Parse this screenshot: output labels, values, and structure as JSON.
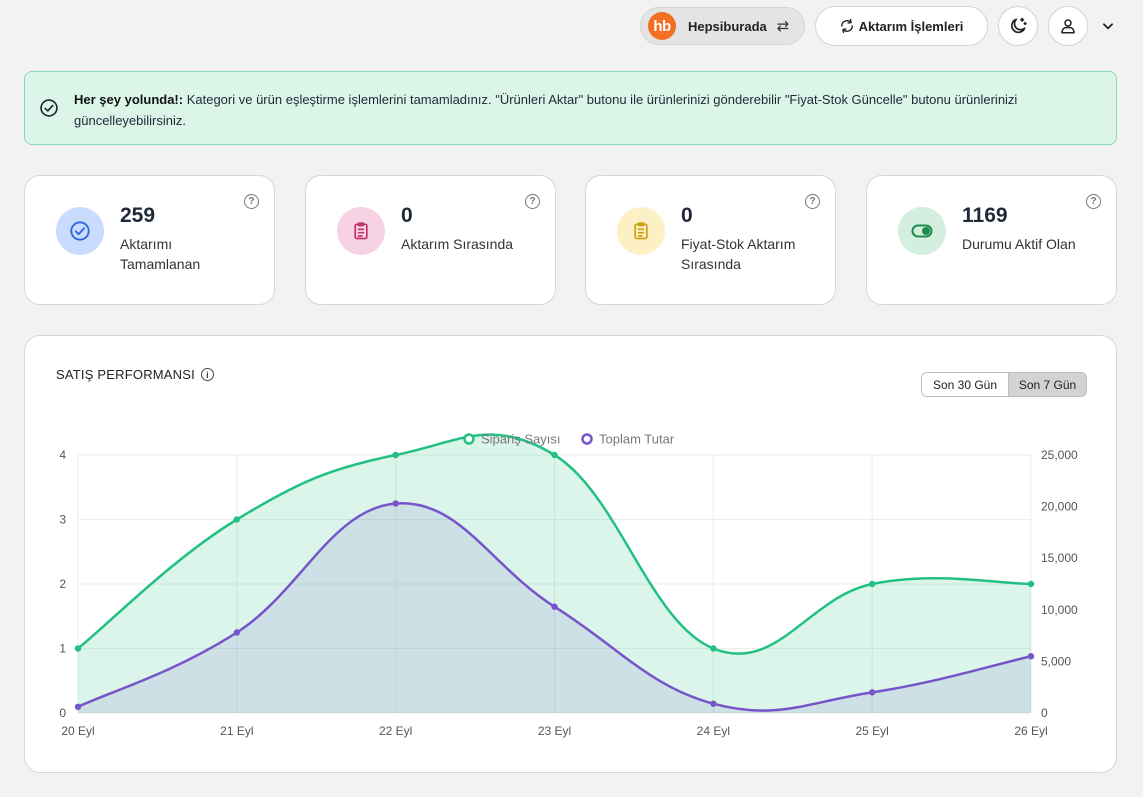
{
  "topbar": {
    "store_logo": "hb",
    "store_name": "Hepsiburada",
    "swap_icon": "⇄",
    "transfer_button": "Aktarım İşlemleri"
  },
  "alert": {
    "title": "Her şey yolunda!:",
    "message": " Kategori ve ürün eşleştirme işlemlerini tamamladınız. \"Ürünleri Aktar\" butonu ile ürünlerinizi gönderebilir \"Fiyat-Stok Güncelle\" butonu ürünlerinizi güncelleyebilirsiniz."
  },
  "stats": [
    {
      "value": "259",
      "label": "Aktarımı Tamamlanan",
      "icon": "check-circle-icon",
      "color": "#c9dcff"
    },
    {
      "value": "0",
      "label": "Aktarım Sırasında",
      "icon": "clipboard-list-icon",
      "color": "#f7d2e2"
    },
    {
      "value": "0",
      "label": "Fiyat-Stok Aktarım Sırasında",
      "icon": "clipboard-list-icon",
      "color": "#fdf0c4"
    },
    {
      "value": "1169",
      "label": "Durumu Aktif Olan",
      "icon": "toggle-on-icon",
      "color": "#d4eedf"
    }
  ],
  "help_glyph": "?",
  "panel": {
    "title": "SATIŞ PERFORMANSI",
    "info_glyph": "i",
    "ranges": [
      "Son 30 Gün",
      "Son 7 Gün"
    ],
    "active_range": "Son 7 Gün"
  },
  "chart_data": {
    "type": "area",
    "categories": [
      "20 Eyl",
      "21 Eyl",
      "22 Eyl",
      "23 Eyl",
      "24 Eyl",
      "25 Eyl",
      "26 Eyl"
    ],
    "series": [
      {
        "name": "Sipariş Sayısı",
        "axis": "left",
        "color": "#22c083",
        "values": [
          1,
          3,
          4,
          4,
          1,
          2,
          2
        ]
      },
      {
        "name": "Toplam Tutar",
        "axis": "right",
        "color": "#7654c9",
        "values": [
          600,
          7800,
          20300,
          10300,
          900,
          2000,
          5500
        ]
      }
    ],
    "y_left": {
      "ticks": [
        0,
        1,
        2,
        3,
        4
      ],
      "ylim": [
        0,
        4
      ]
    },
    "y_right": {
      "ticks": [
        "0",
        "5,000",
        "10,000",
        "15,000",
        "20,000",
        "25,000"
      ],
      "ylim": [
        0,
        25000
      ]
    },
    "legend_position": "top-center",
    "grid": true
  }
}
